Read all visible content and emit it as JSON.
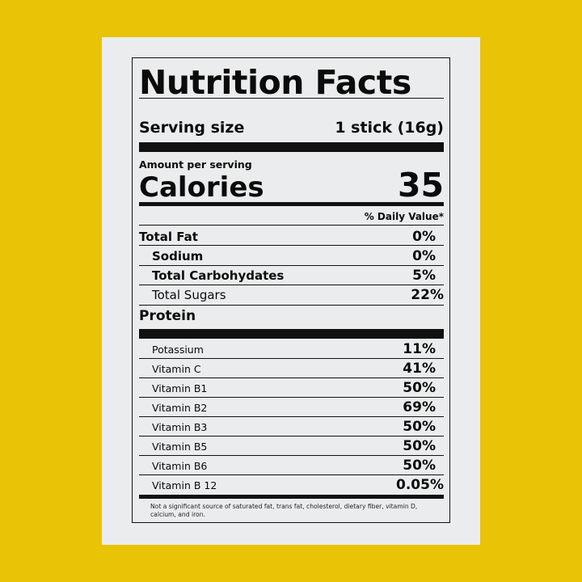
{
  "label": {
    "title": "Nutrition Facts",
    "serving": {
      "label": "Serving size",
      "value": "1 stick (16g)"
    },
    "amount_per_serving": "Amount per serving",
    "calories": {
      "label": "Calories",
      "value": "35"
    },
    "daily_value_header": "% Daily Value*",
    "nutrients": [
      {
        "label": "Total Fat",
        "value": "0%"
      },
      {
        "label": "Sodium",
        "value": "0%"
      },
      {
        "label": "Total Carbohydates",
        "value": "5%"
      },
      {
        "label": "Total Sugars",
        "value": "22%"
      }
    ],
    "protein": "Protein",
    "vitamins": [
      {
        "label": "Potassium",
        "value": "11%"
      },
      {
        "label": "Vitamin C",
        "value": "41%"
      },
      {
        "label": "Vitamin B1",
        "value": "50%"
      },
      {
        "label": "Vitamin B2",
        "value": "69%"
      },
      {
        "label": "Vitamin B3",
        "value": "50%"
      },
      {
        "label": "Vitamin B5",
        "value": "50%"
      },
      {
        "label": "Vitamin B6",
        "value": "50%"
      },
      {
        "label": "Vitamin B 12",
        "value": "0.05%"
      }
    ],
    "footnote": "Not a significant source of saturated fat, trans fat, cholesterol, dietary fiber, vitamin D, calcium, and iron."
  },
  "colors": {
    "background": "#e9c305",
    "card": "#ebeced",
    "ink": "#0b0b0b"
  }
}
